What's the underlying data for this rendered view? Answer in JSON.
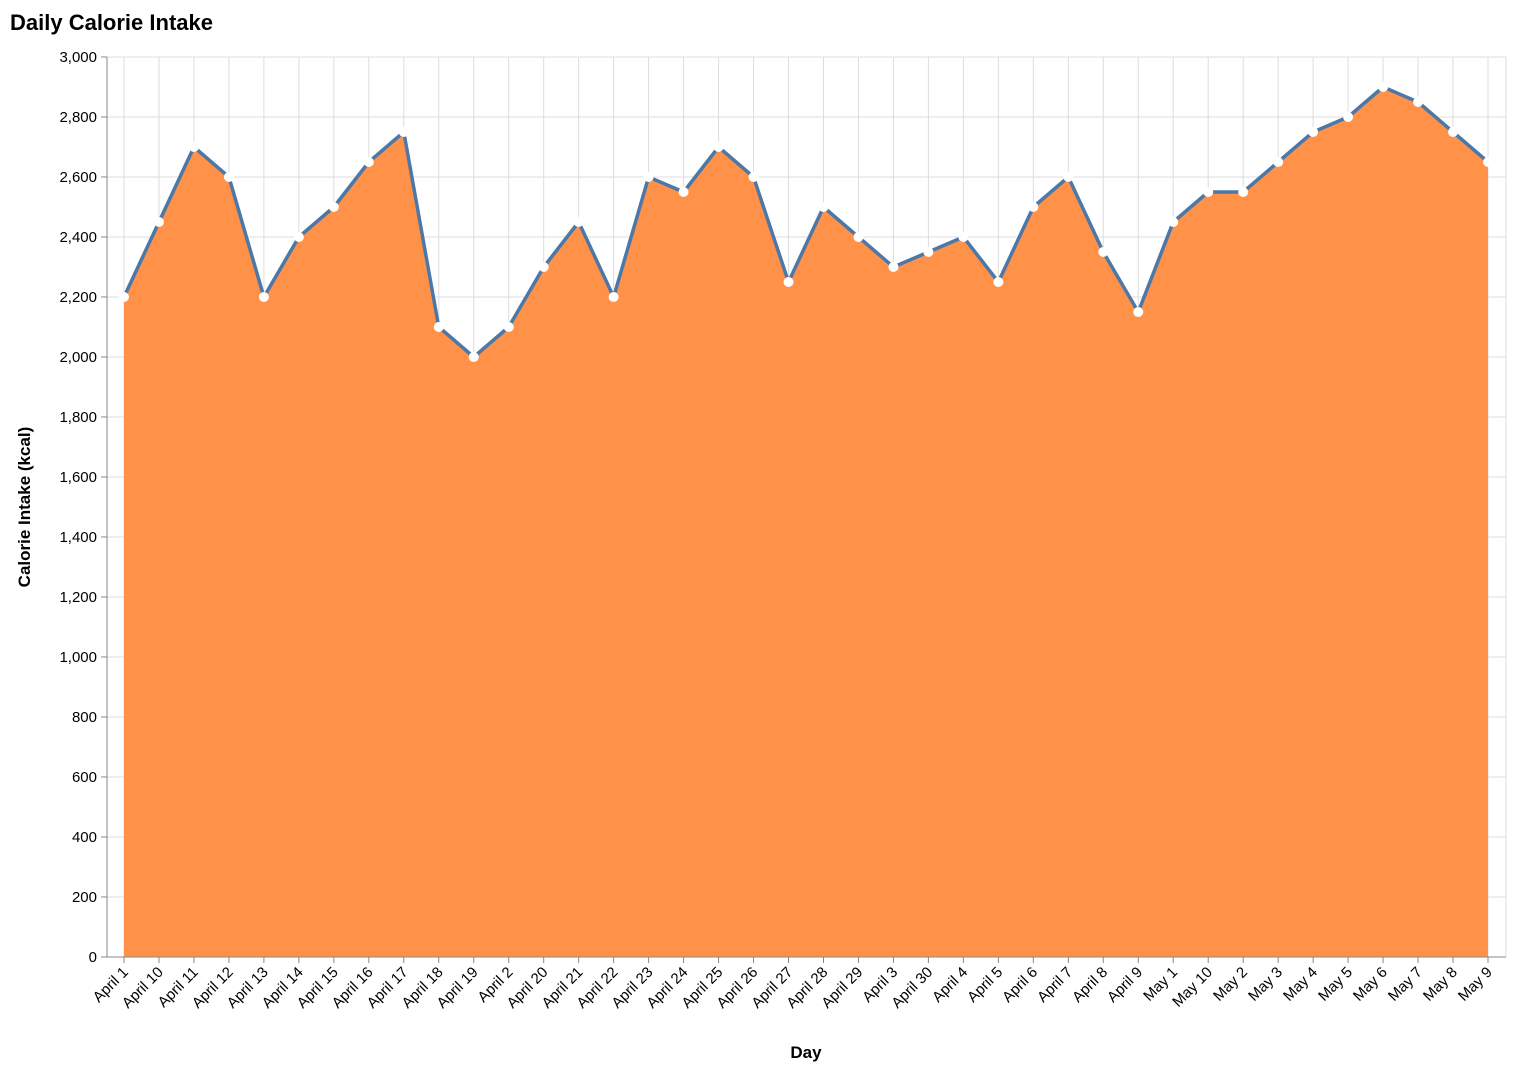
{
  "chart_data": {
    "type": "area",
    "title": "Daily Calorie Intake",
    "xlabel": "Day",
    "ylabel": "Calorie Intake (kcal)",
    "ylim": [
      0,
      3000
    ],
    "yticks": [
      "0",
      "200",
      "400",
      "600",
      "800",
      "1,000",
      "1,200",
      "1,400",
      "1,600",
      "1,800",
      "2,000",
      "2,200",
      "2,400",
      "2,600",
      "2,800",
      "3,000"
    ],
    "grid": true,
    "colors": {
      "area": "#ff9148",
      "line": "#4c78a8",
      "point": "#ffffff"
    },
    "categories": [
      "April 1",
      "April 10",
      "April 11",
      "April 12",
      "April 13",
      "April 14",
      "April 15",
      "April 16",
      "April 17",
      "April 18",
      "April 19",
      "April 2",
      "April 20",
      "April 21",
      "April 22",
      "April 23",
      "April 24",
      "April 25",
      "April 26",
      "April 27",
      "April 28",
      "April 29",
      "April 3",
      "April 30",
      "April 4",
      "April 5",
      "April 6",
      "April 7",
      "April 8",
      "April 9",
      "May 1",
      "May 10",
      "May 2",
      "May 3",
      "May 4",
      "May 5",
      "May 6",
      "May 7",
      "May 8",
      "May 9"
    ],
    "values": [
      2200,
      2450,
      2700,
      2600,
      2200,
      2400,
      2500,
      2650,
      2750,
      2100,
      2000,
      2100,
      2300,
      2450,
      2200,
      2600,
      2550,
      2700,
      2600,
      2250,
      2500,
      2400,
      2300,
      2350,
      2400,
      2250,
      2500,
      2600,
      2350,
      2150,
      2450,
      2550,
      2550,
      2650,
      2750,
      2800,
      2900,
      2850,
      2750,
      2650
    ]
  }
}
